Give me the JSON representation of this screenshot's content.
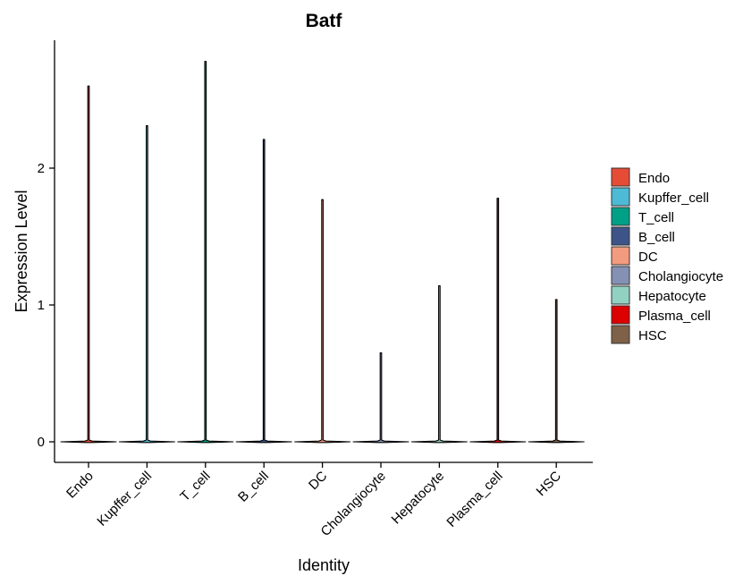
{
  "chart_data": {
    "type": "violin",
    "title": "Batf",
    "xlabel": "Identity",
    "ylabel": "Expression Level",
    "ylim": [
      -0.14,
      2.88
    ],
    "yticks": [
      0,
      1,
      2
    ],
    "categories": [
      "Endo",
      "Kupffer_cell",
      "T_cell",
      "B_cell",
      "DC",
      "Cholangiocyte",
      "Hepatocyte",
      "Plasma_cell",
      "HSC"
    ],
    "max_values": [
      2.6,
      2.31,
      2.78,
      2.21,
      1.77,
      0.65,
      1.14,
      1.78,
      1.04
    ],
    "min_values": [
      0,
      0,
      0,
      0,
      0,
      0,
      0,
      0,
      0
    ],
    "colors": [
      "#E64B35",
      "#4DBBD5",
      "#00A087",
      "#3C5488",
      "#F39B7F",
      "#8491B4",
      "#91D1C2",
      "#DC0000",
      "#7E6148"
    ],
    "legend": {
      "position": "right",
      "entries": [
        "Endo",
        "Kupffer_cell",
        "T_cell",
        "B_cell",
        "DC",
        "Cholangiocyte",
        "Hepatocyte",
        "Plasma_cell",
        "HSC"
      ]
    },
    "grid": false
  }
}
